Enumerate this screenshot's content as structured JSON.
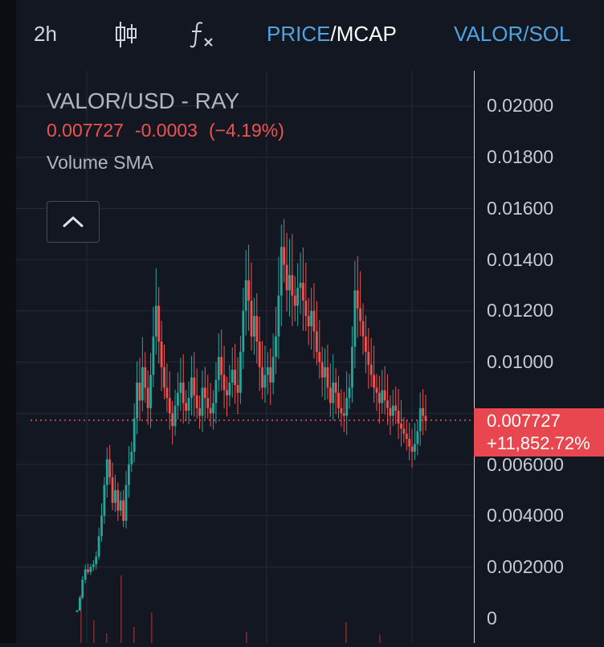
{
  "toolbar": {
    "interval": "2h",
    "price_label": "PRICE",
    "separator": "/",
    "mcap_label": "MCAP",
    "pair_label": "VALOR/SOL",
    "candle_icon": "candlestick-icon",
    "indicator_icon": "fx-indicator-icon"
  },
  "legend": {
    "title": "VALOR/USD - RAY",
    "last_price": "0.007727",
    "change": "-0.0003",
    "change_pct": "(−4.19%)",
    "study": "Volume SMA",
    "collapse_icon": "chevron-up-icon"
  },
  "price_axis": {
    "ticks": [
      "0.02000",
      "0.01800",
      "0.01600",
      "0.01400",
      "0.01200",
      "0.01000",
      "0.006000",
      "0.004000",
      "0.002000",
      "0"
    ]
  },
  "price_badge": {
    "price": "0.007727",
    "change_pct": "+11,852.72%"
  },
  "colors": {
    "background": "#131722",
    "up": "#26a69a",
    "down": "#ef5350",
    "accent": "#4fa3e0",
    "grid": "#262a35"
  },
  "chart_data": {
    "type": "candlestick",
    "ylim": [
      0,
      0.021
    ],
    "last_price": 0.007727,
    "series": [
      {
        "name": "VALOR/USD - RAY",
        "closes": [
          0.0003,
          0.0008,
          0.0015,
          0.0019,
          0.0018,
          0.002,
          0.0021,
          0.0024,
          0.0032,
          0.004,
          0.0052,
          0.0062,
          0.0055,
          0.0045,
          0.005,
          0.0042,
          0.0046,
          0.0038,
          0.0052,
          0.006,
          0.0065,
          0.0078,
          0.0092,
          0.0085,
          0.0098,
          0.009,
          0.0082,
          0.0095,
          0.011,
          0.0122,
          0.0108,
          0.0098,
          0.009,
          0.0086,
          0.008,
          0.0075,
          0.0083,
          0.0088,
          0.0092,
          0.0084,
          0.0081,
          0.0086,
          0.0094,
          0.0087,
          0.0082,
          0.0079,
          0.009,
          0.0086,
          0.0082,
          0.008,
          0.0084,
          0.0093,
          0.0102,
          0.0095,
          0.0089,
          0.0087,
          0.0092,
          0.0097,
          0.0091,
          0.0088,
          0.0104,
          0.012,
          0.0132,
          0.0124,
          0.011,
          0.0118,
          0.0108,
          0.0098,
          0.009,
          0.0095,
          0.0098,
          0.0092,
          0.0102,
          0.011,
          0.0126,
          0.0145,
          0.0138,
          0.0128,
          0.0134,
          0.0126,
          0.0122,
          0.0129,
          0.0131,
          0.0124,
          0.0118,
          0.0114,
          0.012,
          0.0112,
          0.0104,
          0.01,
          0.0094,
          0.0098,
          0.009,
          0.0084,
          0.0092,
          0.0088,
          0.0082,
          0.008,
          0.0079,
          0.0086,
          0.009,
          0.0106,
          0.0128,
          0.0121,
          0.0116,
          0.011,
          0.0104,
          0.0099,
          0.0095,
          0.009,
          0.0088,
          0.0084,
          0.0089,
          0.0085,
          0.0082,
          0.0079,
          0.0083,
          0.0081,
          0.0076,
          0.0074,
          0.0072,
          0.007,
          0.0067,
          0.0065,
          0.0068,
          0.0073,
          0.0082,
          0.0079,
          0.0077
        ]
      }
    ]
  }
}
